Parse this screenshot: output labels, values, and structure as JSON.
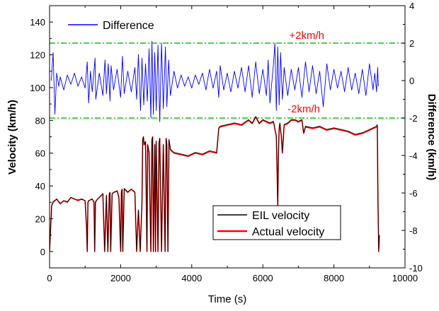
{
  "chart_data": {
    "type": "line",
    "xlabel": "Time (s)",
    "ylabel_left": "Velocity (km/h)",
    "ylabel_right": "Difference (km/h)",
    "xlim": [
      0,
      10000
    ],
    "ylim_left": [
      -10,
      150
    ],
    "ylim_right": [
      -10,
      4
    ],
    "x_ticks": [
      0,
      2000,
      4000,
      6000,
      8000,
      10000
    ],
    "y_left_ticks": [
      0,
      20,
      40,
      60,
      80,
      100,
      120,
      140
    ],
    "y_right_ticks": [
      -10,
      -8,
      -6,
      -4,
      -2,
      0,
      2,
      4
    ],
    "grid": false,
    "colors": {
      "eil": "#000000",
      "actual": "#ff0000",
      "difference": "#0000ff",
      "threshold": "#00cc00",
      "annotation": "#ff0000"
    },
    "thresholds": [
      {
        "label": "+2km/h",
        "value": 2
      },
      {
        "label": "-2km/h",
        "value": -2
      }
    ],
    "series": [
      {
        "name": "Actual velocity",
        "axis": "left",
        "x": [
          0,
          20,
          60,
          100,
          200,
          300,
          400,
          500,
          600,
          700,
          800,
          900,
          1000,
          1040,
          1060,
          1080,
          1100,
          1200,
          1250,
          1270,
          1290,
          1350,
          1400,
          1500,
          1550,
          1600,
          1640,
          1680,
          1700,
          1720,
          1760,
          1800,
          1900,
          1950,
          2000,
          2020,
          2040,
          2060,
          2100,
          2200,
          2300,
          2400,
          2450,
          2500,
          2550,
          2600,
          2620,
          2640,
          2660,
          2700,
          2740,
          2760,
          2800,
          2850,
          2880,
          2900,
          2920,
          2960,
          2980,
          3000,
          3050,
          3080,
          3100,
          3150,
          3200,
          3250,
          3280,
          3300,
          3330,
          3360,
          3400,
          3500,
          3700,
          3900,
          4100,
          4300,
          4500,
          4700,
          4760,
          4800,
          5000,
          5200,
          5400,
          5600,
          5700,
          5800,
          5900,
          6000,
          6100,
          6200,
          6300,
          6380,
          6400,
          6420,
          6440,
          6460,
          6480,
          6520,
          6550,
          6600,
          6700,
          6800,
          6900,
          7000,
          7100,
          7150,
          7200,
          7400,
          7600,
          7800,
          8000,
          8200,
          8400,
          8500,
          8600,
          8800,
          9000,
          9100,
          9200,
          9220,
          9240,
          9260,
          9280
        ],
        "values": [
          0,
          10,
          28,
          30,
          32,
          29,
          31,
          30,
          33,
          32,
          31,
          32,
          31,
          15,
          0,
          30,
          31,
          32,
          30,
          0,
          30,
          32,
          33,
          35,
          0,
          34,
          0,
          35,
          36,
          0,
          35,
          36,
          37,
          33,
          0,
          36,
          38,
          0,
          38,
          36,
          38,
          36,
          0,
          25,
          0,
          30,
          68,
          70,
          65,
          67,
          0,
          65,
          60,
          0,
          68,
          70,
          0,
          65,
          0,
          67,
          0,
          66,
          69,
          0,
          65,
          0,
          69,
          65,
          0,
          68,
          62,
          60,
          59,
          58,
          60,
          59,
          61,
          60,
          75,
          76,
          77,
          78,
          77,
          80,
          78,
          82,
          78,
          80,
          79,
          78,
          79,
          70,
          50,
          28,
          60,
          75,
          78,
          70,
          60,
          77,
          78,
          80,
          80,
          79,
          80,
          72,
          76,
          75,
          76,
          74,
          75,
          74,
          73,
          72,
          71,
          72,
          74,
          75,
          76,
          77,
          30,
          0,
          10
        ]
      },
      {
        "name": "EIL velocity",
        "axis": "left",
        "x": [
          0,
          20,
          60,
          100,
          200,
          300,
          400,
          500,
          600,
          700,
          800,
          900,
          1000,
          1040,
          1060,
          1080,
          1100,
          1200,
          1250,
          1270,
          1290,
          1350,
          1400,
          1500,
          1550,
          1600,
          1640,
          1680,
          1700,
          1720,
          1760,
          1800,
          1900,
          1950,
          2000,
          2020,
          2040,
          2060,
          2100,
          2200,
          2300,
          2400,
          2450,
          2500,
          2550,
          2600,
          2620,
          2640,
          2660,
          2700,
          2740,
          2760,
          2800,
          2850,
          2880,
          2900,
          2920,
          2960,
          2980,
          3000,
          3050,
          3080,
          3100,
          3150,
          3200,
          3250,
          3280,
          3300,
          3330,
          3360,
          3400,
          3500,
          3700,
          3900,
          4100,
          4300,
          4500,
          4700,
          4760,
          4800,
          5000,
          5200,
          5400,
          5600,
          5700,
          5800,
          5900,
          6000,
          6100,
          6200,
          6300,
          6380,
          6400,
          6420,
          6440,
          6460,
          6480,
          6520,
          6550,
          6600,
          6700,
          6800,
          6900,
          7000,
          7100,
          7150,
          7200,
          7400,
          7600,
          7800,
          8000,
          8200,
          8400,
          8500,
          8600,
          8800,
          9000,
          9100,
          9200,
          9220,
          9240,
          9260,
          9280
        ],
        "values": [
          0,
          10,
          28.5,
          30.5,
          32,
          29.5,
          31,
          30.5,
          33,
          32,
          31.5,
          32,
          31,
          15,
          0,
          30.5,
          31,
          32,
          30.5,
          0,
          30.5,
          32,
          33,
          35.5,
          0,
          34.5,
          0,
          35.5,
          36,
          0,
          35.5,
          36,
          37,
          33.5,
          0,
          36.5,
          38,
          0,
          38.5,
          36.5,
          38,
          36.5,
          0,
          25.5,
          0,
          30.5,
          68.5,
          70,
          65.5,
          67,
          0,
          65.5,
          60.5,
          0,
          68.5,
          70,
          0,
          65.5,
          0,
          67.5,
          0,
          66.5,
          69,
          0,
          65.5,
          0,
          69,
          65.5,
          0,
          68.5,
          62.5,
          60.5,
          59.5,
          58.5,
          60.5,
          59.5,
          61.5,
          60.5,
          75.5,
          76.5,
          77.5,
          78.5,
          77.5,
          80.5,
          78.5,
          82.5,
          78.5,
          80.5,
          79.5,
          78.5,
          79.5,
          70.5,
          50.5,
          28.5,
          60.5,
          75.5,
          78.5,
          70.5,
          60.5,
          77.5,
          78.5,
          80.5,
          80.5,
          79.5,
          80.5,
          72.5,
          76.5,
          75.5,
          76.5,
          74.5,
          75.5,
          74.5,
          73.5,
          72.5,
          71.5,
          72.5,
          74.5,
          75.5,
          76.5,
          77.5,
          30.5,
          0,
          10
        ]
      },
      {
        "name": "Difference",
        "axis": "right",
        "x": [
          50,
          100,
          150,
          200,
          260,
          300,
          400,
          500,
          600,
          700,
          800,
          900,
          1000,
          1060,
          1100,
          1150,
          1200,
          1280,
          1300,
          1400,
          1500,
          1560,
          1600,
          1650,
          1700,
          1730,
          1800,
          1900,
          2000,
          2050,
          2100,
          2200,
          2300,
          2400,
          2450,
          2500,
          2560,
          2600,
          2650,
          2700,
          2750,
          2800,
          2850,
          2880,
          2920,
          2960,
          3000,
          3050,
          3100,
          3150,
          3200,
          3260,
          3300,
          3350,
          3400,
          3500,
          3600,
          3700,
          3800,
          3900,
          4000,
          4100,
          4200,
          4300,
          4400,
          4500,
          4600,
          4700,
          4760,
          4800,
          4900,
          5000,
          5100,
          5200,
          5300,
          5400,
          5500,
          5600,
          5700,
          5800,
          5900,
          6000,
          6100,
          6150,
          6200,
          6300,
          6340,
          6380,
          6420,
          6460,
          6500,
          6550,
          6600,
          6700,
          6800,
          6900,
          7000,
          7100,
          7200,
          7300,
          7400,
          7500,
          7600,
          7700,
          7800,
          7900,
          8000,
          8100,
          8200,
          8300,
          8400,
          8500,
          8600,
          8700,
          8800,
          8900,
          9000,
          9100,
          9150,
          9200,
          9230,
          9250
        ],
        "values": [
          0,
          1.5,
          -1.8,
          0.4,
          -0.3,
          0.2,
          -0.5,
          0.3,
          -0.2,
          0.4,
          -0.3,
          0.2,
          -0.4,
          1.0,
          -1.2,
          0.5,
          -0.6,
          1.2,
          -1.0,
          0.4,
          -0.8,
          1.1,
          -0.7,
          0.9,
          -1.1,
          0.8,
          -0.5,
          0.6,
          -0.9,
          1.3,
          -0.7,
          0.5,
          -0.6,
          0.7,
          -1.0,
          1.4,
          -1.6,
          1.2,
          -1.3,
          0.9,
          -1.1,
          1.7,
          -2.0,
          2.1,
          -1.8,
          1.5,
          -1.6,
          1.9,
          -2.2,
          2.0,
          -1.5,
          1.8,
          -1.4,
          1.1,
          -0.8,
          0.5,
          -0.4,
          0.3,
          -0.3,
          0.2,
          -0.4,
          0.3,
          -0.2,
          0.4,
          -0.5,
          0.6,
          -0.4,
          0.5,
          -0.9,
          0.8,
          -0.5,
          0.4,
          -0.6,
          0.5,
          -0.4,
          0.7,
          -0.6,
          0.8,
          -0.9,
          1.0,
          -0.7,
          0.6,
          -0.8,
          1.1,
          -1.2,
          0.9,
          2.0,
          -1.6,
          1.8,
          -1.3,
          1.5,
          -1.0,
          0.7,
          -0.8,
          0.6,
          -0.5,
          0.7,
          -0.9,
          1.0,
          -0.6,
          0.8,
          -0.7,
          0.5,
          -1.4,
          0.9,
          -0.5,
          0.6,
          -0.4,
          0.5,
          -0.6,
          0.7,
          -0.5,
          0.4,
          -0.7,
          0.6,
          -0.8,
          0.9,
          -0.5,
          0.4,
          -0.6,
          0.7,
          -0.3
        ]
      }
    ]
  }
}
